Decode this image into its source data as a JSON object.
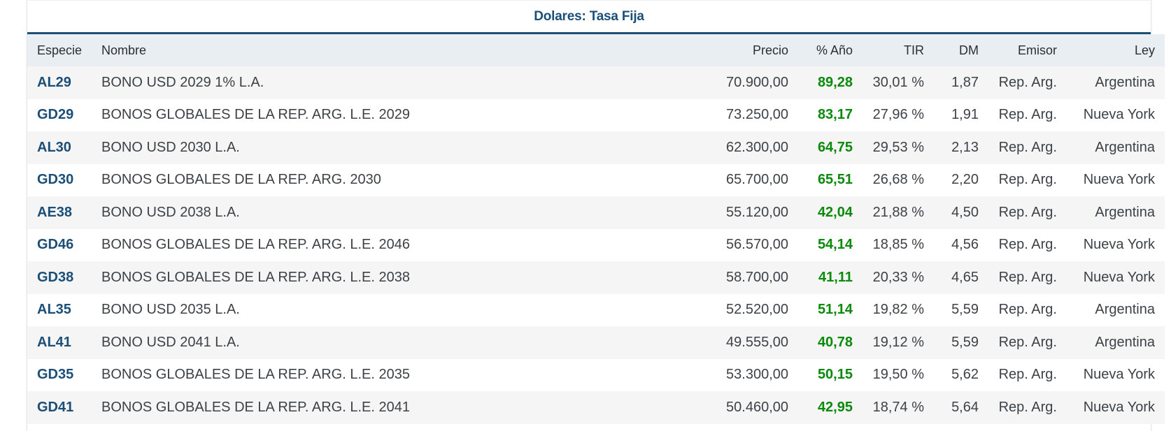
{
  "table": {
    "title": "Dolares: Tasa Fija",
    "columns": {
      "especie": "Especie",
      "nombre": "Nombre",
      "precio": "Precio",
      "pct_ano": "% Año",
      "tir": "TIR",
      "dm": "DM",
      "emisor": "Emisor",
      "ley": "Ley"
    },
    "rows": [
      {
        "especie": "AL29",
        "nombre": "BONO USD 2029 1% L.A.",
        "precio": "70.900,00",
        "pct_ano": "89,28",
        "tir": "30,01 %",
        "dm": "1,87",
        "emisor": "Rep. Arg.",
        "ley": "Argentina"
      },
      {
        "especie": "GD29",
        "nombre": "BONOS GLOBALES DE LA REP. ARG. L.E. 2029",
        "precio": "73.250,00",
        "pct_ano": "83,17",
        "tir": "27,96 %",
        "dm": "1,91",
        "emisor": "Rep. Arg.",
        "ley": "Nueva York"
      },
      {
        "especie": "AL30",
        "nombre": "BONO USD 2030 L.A.",
        "precio": "62.300,00",
        "pct_ano": "64,75",
        "tir": "29,53 %",
        "dm": "2,13",
        "emisor": "Rep. Arg.",
        "ley": "Argentina"
      },
      {
        "especie": "GD30",
        "nombre": "BONOS GLOBALES DE LA REP. ARG. 2030",
        "precio": "65.700,00",
        "pct_ano": "65,51",
        "tir": "26,68 %",
        "dm": "2,20",
        "emisor": "Rep. Arg.",
        "ley": "Nueva York"
      },
      {
        "especie": "AE38",
        "nombre": "BONO USD 2038 L.A.",
        "precio": "55.120,00",
        "pct_ano": "42,04",
        "tir": "21,88 %",
        "dm": "4,50",
        "emisor": "Rep. Arg.",
        "ley": "Argentina"
      },
      {
        "especie": "GD46",
        "nombre": "BONOS GLOBALES DE LA REP. ARG. L.E. 2046",
        "precio": "56.570,00",
        "pct_ano": "54,14",
        "tir": "18,85 %",
        "dm": "4,56",
        "emisor": "Rep. Arg.",
        "ley": "Nueva York"
      },
      {
        "especie": "GD38",
        "nombre": "BONOS GLOBALES DE LA REP. ARG. L.E. 2038",
        "precio": "58.700,00",
        "pct_ano": "41,11",
        "tir": "20,33 %",
        "dm": "4,65",
        "emisor": "Rep. Arg.",
        "ley": "Nueva York"
      },
      {
        "especie": "AL35",
        "nombre": "BONO USD 2035 L.A.",
        "precio": "52.520,00",
        "pct_ano": "51,14",
        "tir": "19,82 %",
        "dm": "5,59",
        "emisor": "Rep. Arg.",
        "ley": "Argentina"
      },
      {
        "especie": "AL41",
        "nombre": "BONO USD 2041 L.A.",
        "precio": "49.555,00",
        "pct_ano": "40,78",
        "tir": "19,12 %",
        "dm": "5,59",
        "emisor": "Rep. Arg.",
        "ley": "Argentina"
      },
      {
        "especie": "GD35",
        "nombre": "BONOS GLOBALES DE LA REP. ARG. L.E. 2035",
        "precio": "53.300,00",
        "pct_ano": "50,15",
        "tir": "19,50 %",
        "dm": "5,62",
        "emisor": "Rep. Arg.",
        "ley": "Nueva York"
      },
      {
        "especie": "GD41",
        "nombre": "BONOS GLOBALES DE LA REP. ARG. L.E. 2041",
        "precio": "50.460,00",
        "pct_ano": "42,95",
        "tir": "18,74 %",
        "dm": "5,64",
        "emisor": "Rep. Arg.",
        "ley": "Nueva York"
      }
    ]
  },
  "colors": {
    "title": "#1a4f7a",
    "ticker": "#1b4f78",
    "positive": "#0a8a0a",
    "header_bg": "#e9eef3",
    "stripe_bg": "#f5f5f5"
  }
}
